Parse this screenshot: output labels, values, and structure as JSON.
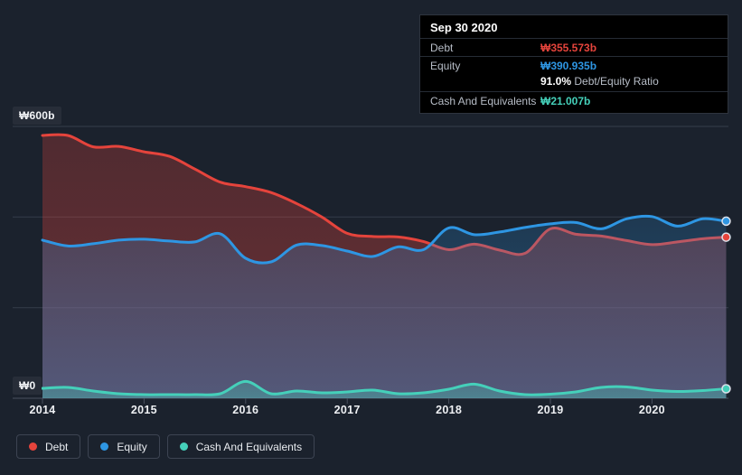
{
  "colors": {
    "background": "#1b222d",
    "grid": "#353d4b",
    "axis": "#49505e",
    "debt": "#e5443c",
    "equity": "#2e96e3",
    "cash": "#45d0ba"
  },
  "tooltip": {
    "date": "Sep 30 2020",
    "rows": [
      {
        "label": "Debt",
        "value": "₩355.573b",
        "color": "#e5443c"
      },
      {
        "label": "Equity",
        "value": "₩390.935b",
        "color": "#2e96e3"
      },
      {
        "label": "Cash And Equivalents",
        "value": "₩21.007b",
        "color": "#45d0ba"
      }
    ],
    "ratio_value": "91.0%",
    "ratio_label": "Debt/Equity Ratio"
  },
  "legend": {
    "items": [
      {
        "label": "Debt",
        "color": "#e5443c"
      },
      {
        "label": "Equity",
        "color": "#2e96e3"
      },
      {
        "label": "Cash And Equivalents",
        "color": "#45d0ba"
      }
    ]
  },
  "chart_data": {
    "type": "area",
    "x": [
      2014.0,
      2014.25,
      2014.5,
      2014.75,
      2015.0,
      2015.25,
      2015.5,
      2015.75,
      2016.0,
      2016.25,
      2016.5,
      2016.75,
      2017.0,
      2017.25,
      2017.5,
      2017.75,
      2018.0,
      2018.25,
      2018.5,
      2018.75,
      2019.0,
      2019.25,
      2019.5,
      2019.75,
      2020.0,
      2020.25,
      2020.5,
      2020.73
    ],
    "series": [
      {
        "name": "Debt",
        "color": "#e5443c",
        "values": [
          580,
          580,
          555,
          556,
          544,
          534,
          506,
          477,
          467,
          454,
          430,
          400,
          364,
          357,
          356,
          346,
          328,
          340,
          327,
          320,
          374,
          362,
          358,
          348,
          339,
          345,
          352,
          355.573
        ]
      },
      {
        "name": "Equity",
        "color": "#2e96e3",
        "values": [
          349,
          336,
          341,
          349,
          351,
          347,
          345,
          363,
          309,
          301,
          338,
          337,
          325,
          313,
          334,
          328,
          376,
          361,
          367,
          377,
          385,
          388,
          374,
          396,
          401,
          380,
          396,
          390.935
        ]
      },
      {
        "name": "Cash And Equivalents",
        "color": "#45d0ba",
        "values": [
          22,
          24,
          16,
          10,
          8,
          8,
          8,
          10,
          37,
          10,
          16,
          12,
          14,
          18,
          10,
          12,
          20,
          31,
          16,
          8,
          9,
          14,
          24,
          25,
          18,
          15,
          17,
          21.007
        ]
      }
    ],
    "x_ticks": [
      2014,
      2015,
      2016,
      2017,
      2018,
      2019,
      2020
    ],
    "y_ticks": [
      {
        "value": 600,
        "label": "₩600b"
      },
      {
        "value": 0,
        "label": "₩0"
      }
    ],
    "grid_values": [
      600,
      400,
      200,
      0
    ],
    "ylim": [
      0,
      600
    ],
    "xlim": [
      2014,
      2020.75
    ],
    "currency": "₩",
    "unit": "b",
    "legend_position": "bottom-left",
    "grid": "horizontal"
  }
}
